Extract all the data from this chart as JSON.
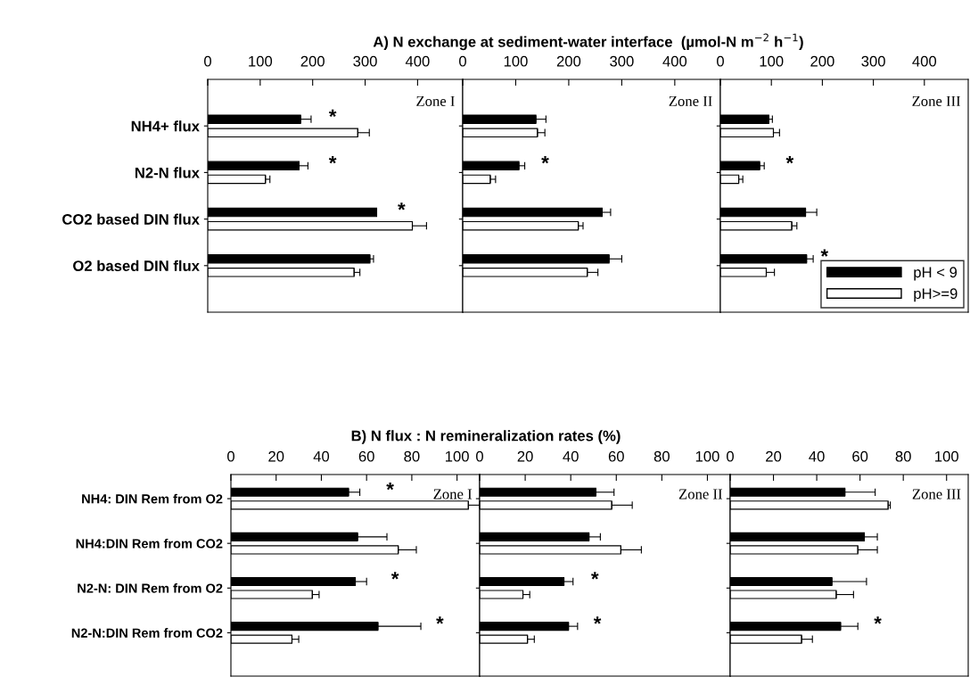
{
  "chart_data": [
    {
      "type": "bar",
      "orientation": "horizontal",
      "title": "A) N exchange at sediment-water interface  (µmol-N m$^{−2}$ h$^{−1}$)",
      "categories": [
        "NH4+ flux",
        "N2-N flux",
        "CO2 based DIN flux",
        "O2 based DIN flux"
      ],
      "xlim": [
        0,
        486
      ],
      "xticks": [
        0,
        100,
        200,
        300,
        400
      ],
      "grid": false,
      "legend": false,
      "series": [
        {
          "color": "#000000",
          "values": [
            177,
            174,
            322,
            309
          ],
          "errors": [
            [
              177,
              197
            ],
            [
              174,
              191
            ],
            null,
            [
              309,
              316
            ]
          ]
        },
        {
          "color": "#ffffff",
          "values": [
            286,
            110,
            390,
            279
          ],
          "errors": [
            [
              286,
              308
            ],
            [
              110,
              118.5
            ],
            [
              390,
              417
            ],
            [
              279,
              290
            ]
          ]
        }
      ],
      "annotations": [
        "Zone I",
        "*",
        "*",
        "*"
      ]
    },
    {
      "type": "bar",
      "orientation": "horizontal",
      "categories": [
        null,
        null,
        null,
        null
      ],
      "xlim": [
        0,
        486
      ],
      "xticks": [
        0,
        100,
        200,
        300,
        400
      ],
      "grid": false,
      "legend": false,
      "tick_labels": "x",
      "series": [
        {
          "color": "#000000",
          "values": [
            138,
            106,
            263,
            276
          ],
          "errors": [
            [
              138,
              157
            ],
            [
              106,
              117
            ],
            [
              263,
              279
            ],
            [
              276,
              300
            ]
          ]
        },
        {
          "color": "#ffffff",
          "values": [
            141,
            52,
            218,
            235
          ],
          "errors": [
            [
              141,
              155
            ],
            [
              52,
              62
            ],
            [
              218,
              227
            ],
            [
              235,
              255
            ]
          ]
        }
      ],
      "annotations": [
        "Zone II",
        "*"
      ]
    },
    {
      "type": "bar",
      "orientation": "horizontal",
      "categories": [
        null,
        null,
        null,
        null
      ],
      "xlim": [
        0,
        486
      ],
      "xticks": [
        0,
        100,
        200,
        300,
        400
      ],
      "grid": false,
      "legend": "bottom right",
      "tick_labels": "x",
      "series": [
        {
          "name": "pH < 9",
          "color": "#000000",
          "values": [
            95,
            77,
            167,
            169
          ],
          "errors": [
            [
              95,
              102
            ],
            [
              77,
              86
            ],
            [
              167,
              189
            ],
            [
              169,
              182
            ]
          ]
        },
        {
          "name": "pH>=9",
          "color": "#ffffff",
          "values": [
            104,
            36,
            140,
            90
          ],
          "errors": [
            [
              104,
              116
            ],
            [
              36,
              44
            ],
            [
              140,
              150
            ],
            [
              90,
              106
            ]
          ]
        }
      ],
      "annotations": [
        "Zone III",
        "*",
        "*"
      ]
    },
    {
      "type": "bar",
      "orientation": "horizontal",
      "title": "B) N flux : N remineralization rates (%)",
      "categories": [
        "NH4: DIN Rem from O2",
        "NH4:DIN Rem from CO2",
        "N2-N: DIN Rem from O2",
        "N2-N:DIN Rem from CO2"
      ],
      "xlim": [
        0,
        110
      ],
      "xticks": [
        0,
        20,
        40,
        60,
        80,
        100
      ],
      "grid": false,
      "legend": false,
      "series": [
        {
          "color": "#000000",
          "values": [
            52,
            56,
            55,
            65
          ],
          "errors": [
            [
              52,
              57
            ],
            [
              56,
              69
            ],
            [
              55,
              60
            ],
            [
              65,
              84
            ]
          ]
        },
        {
          "color": "#ffffff",
          "values": [
            105,
            74,
            36,
            27
          ],
          "errors": [
            [
              105,
              110
            ],
            [
              74,
              82
            ],
            [
              36,
              39
            ],
            [
              27,
              30
            ]
          ]
        }
      ],
      "annotations": [
        "Zone I",
        "*",
        "*",
        "*"
      ]
    },
    {
      "type": "bar",
      "orientation": "horizontal",
      "categories": [
        null,
        null,
        null,
        null
      ],
      "xlim": [
        0,
        110
      ],
      "xticks": [
        0,
        20,
        40,
        60,
        80,
        100
      ],
      "grid": false,
      "legend": false,
      "tick_labels": "x",
      "series": [
        {
          "color": "#000000",
          "values": [
            51,
            48,
            37,
            39
          ],
          "errors": [
            [
              51,
              59
            ],
            [
              48,
              53
            ],
            [
              37,
              41
            ],
            [
              39,
              43
            ]
          ]
        },
        {
          "color": "#ffffff",
          "values": [
            58,
            62,
            19,
            21
          ],
          "errors": [
            [
              58,
              67
            ],
            [
              62,
              71
            ],
            [
              19,
              22
            ],
            [
              21,
              24
            ]
          ]
        }
      ],
      "annotations": [
        "Zone II",
        "*",
        "*"
      ]
    },
    {
      "type": "bar",
      "orientation": "horizontal",
      "categories": [
        null,
        null,
        null,
        null
      ],
      "xlim": [
        0,
        110
      ],
      "xticks": [
        0,
        20,
        40,
        60,
        80,
        100
      ],
      "grid": false,
      "legend": false,
      "tick_labels": "x",
      "series": [
        {
          "color": "#000000",
          "values": [
            53,
            62,
            47,
            51
          ],
          "errors": [
            [
              53,
              67
            ],
            [
              62,
              68
            ],
            [
              47,
              63
            ],
            [
              51,
              59
            ]
          ]
        },
        {
          "color": "#ffffff",
          "values": [
            73,
            59,
            49,
            33
          ],
          "errors": [
            [
              73,
              74
            ],
            [
              59,
              68
            ],
            [
              49,
              57
            ],
            [
              33,
              38
            ]
          ]
        }
      ],
      "annotations": [
        "Zone III",
        "*"
      ]
    }
  ]
}
